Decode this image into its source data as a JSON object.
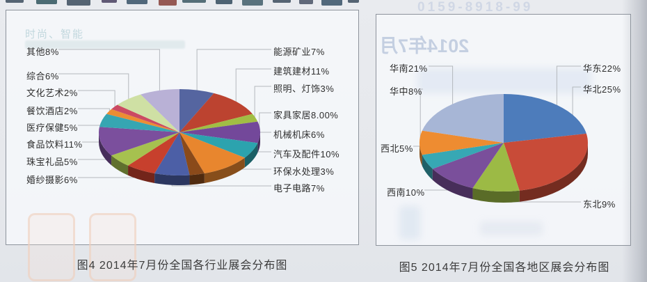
{
  "bleedthrough": {
    "top_left_text": "时尚、智能",
    "mirrored_title_fragment": "2014年7月",
    "phone_fragment": "0159-8918-99"
  },
  "chart_data": [
    {
      "type": "pie",
      "style": "3d",
      "order": "clockwise-from-top",
      "title": "图4 2014年7月份全国各行业展会分布图",
      "legend_position": "callout-labels",
      "slices": [
        {
          "name": "能源矿业",
          "label": "能源矿业7%",
          "value": 7,
          "color": "#5565a0"
        },
        {
          "name": "建筑建材",
          "label": "建筑建材11%",
          "value": 11,
          "color": "#bc4330"
        },
        {
          "name": "照明、灯饰",
          "label": "照明、灯饰3%",
          "value": 3,
          "color": "#a1bd44"
        },
        {
          "name": "家具家居",
          "label": "家具家居8.00%",
          "value": 8,
          "color": "#73489a"
        },
        {
          "name": "机械机床",
          "label": "机械机床6%",
          "value": 6,
          "color": "#2ca3ae"
        },
        {
          "name": "汽车及配件",
          "label": "汽车及配件10%",
          "value": 10,
          "color": "#e8862e"
        },
        {
          "name": "环保水处理",
          "label": "环保水处理3%",
          "value": 3,
          "color": "#8a4a1a"
        },
        {
          "name": "电子电路",
          "label": "电子电路7%",
          "value": 7,
          "color": "#4c5fa6"
        },
        {
          "name": "婚纱摄影",
          "label": "婚纱摄影6%",
          "value": 6,
          "color": "#c7402d"
        },
        {
          "name": "珠宝礼品",
          "label": "珠宝礼品5%",
          "value": 5,
          "color": "#a6c14f"
        },
        {
          "name": "食品饮料",
          "label": "食品饮料11%",
          "value": 11,
          "color": "#7b4f9d"
        },
        {
          "name": "医疗保健",
          "label": "医疗保健5%",
          "value": 5,
          "color": "#36a6b2"
        },
        {
          "name": "餐饮酒店",
          "label": "餐饮酒店2%",
          "value": 2,
          "color": "#ec8d33"
        },
        {
          "name": "文化艺术",
          "label": "文化艺术2%",
          "value": 2,
          "color": "#cb4a62"
        },
        {
          "name": "综合",
          "label": "综合6%",
          "value": 6,
          "color": "#cfe0a4"
        },
        {
          "name": "其他",
          "label": "其他8%",
          "value": 8,
          "color": "#b9b1d6"
        }
      ]
    },
    {
      "type": "pie",
      "style": "3d",
      "order": "clockwise-from-top",
      "title": "图5 2014年7月份全国各地区展会分布图",
      "legend_position": "callout-labels",
      "slices": [
        {
          "name": "华东",
          "label": "华东22%",
          "value": 22,
          "color": "#4d7cbb"
        },
        {
          "name": "华北",
          "label": "华北25%",
          "value": 25,
          "color": "#c84b38"
        },
        {
          "name": "东北",
          "label": "东北9%",
          "value": 9,
          "color": "#9cba45"
        },
        {
          "name": "西南",
          "label": "西南10%",
          "value": 10,
          "color": "#7a4f9b"
        },
        {
          "name": "西北",
          "label": "西北5%",
          "value": 5,
          "color": "#37a8b4"
        },
        {
          "name": "华中",
          "label": "华中8%",
          "value": 8,
          "color": "#ee8c31"
        },
        {
          "name": "华南",
          "label": "华南21%",
          "value": 21,
          "color": "#a7b6d6"
        }
      ]
    }
  ]
}
